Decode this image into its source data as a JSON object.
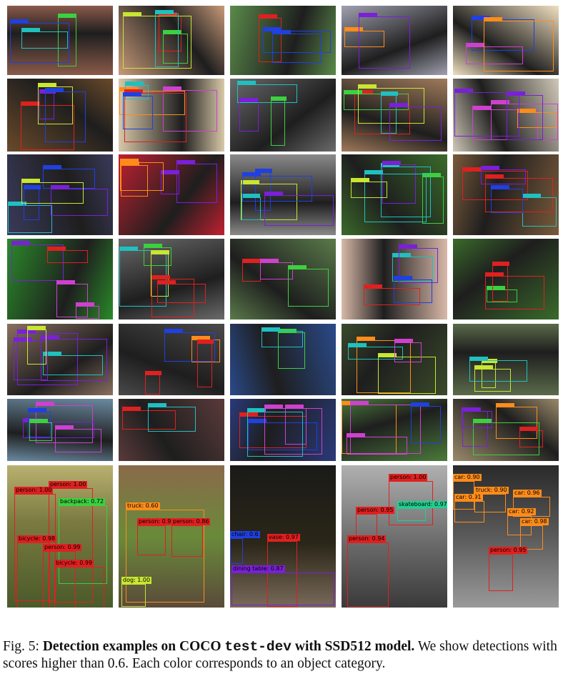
{
  "figure": {
    "caption": {
      "fig_label": "Fig. 5:",
      "bold_part1": "Detection examples on COCO",
      "code": "test-dev",
      "bold_part2": "with SSD512 model.",
      "rest": "We show detections with scores higher than 0.6. Each color corresponds to an object category."
    },
    "large_row": [
      {
        "scene": "forest bikers",
        "detections": [
          {
            "label": "person: 1.00",
            "color": "#e02020"
          },
          {
            "label": "person: 1.00",
            "color": "#e02020"
          },
          {
            "label": "backpack: 0.72",
            "color": "#3cd040"
          },
          {
            "label": "bicycle: 0.98",
            "color": "#e02020"
          },
          {
            "label": "person: 0.99",
            "color": "#e02020"
          },
          {
            "label": "bicycle: 0.99",
            "color": "#e02020"
          }
        ]
      },
      {
        "scene": "truck in countryside",
        "detections": [
          {
            "label": "truck: 0.60",
            "color": "#ff8c1a"
          },
          {
            "label": "person: 0.93",
            "color": "#e02020"
          },
          {
            "label": "person: 0.86",
            "color": "#e02020"
          },
          {
            "label": "dog: 1.00",
            "color": "#c8e632"
          }
        ]
      },
      {
        "scene": "sunflower vase",
        "detections": [
          {
            "label": "vase: 0.97",
            "color": "#e02020"
          },
          {
            "label": "dining table: 0.87",
            "color": "#7a20d8"
          },
          {
            "label": "chair: 0.6",
            "color": "#2040e0"
          }
        ]
      },
      {
        "scene": "skateboard jump",
        "detections": [
          {
            "label": "person: 1.00",
            "color": "#e02020"
          },
          {
            "label": "skateboard: 0.97",
            "color": "#20d090"
          },
          {
            "label": "person: 0.95",
            "color": "#e02020"
          },
          {
            "label": "person: 0.94",
            "color": "#e02020"
          }
        ]
      },
      {
        "scene": "street with cars",
        "detections": [
          {
            "label": "car: 0.90",
            "color": "#ff8c1a"
          },
          {
            "label": "car: 0.91",
            "color": "#ff8c1a"
          },
          {
            "label": "truck: 0.90",
            "color": "#ff8c1a"
          },
          {
            "label": "car: 0.96",
            "color": "#ff8c1a"
          },
          {
            "label": "car: 0.92",
            "color": "#ff8c1a"
          },
          {
            "label": "car: 0.98",
            "color": "#ff8c1a"
          },
          {
            "label": "person: 0.95",
            "color": "#e02020"
          }
        ]
      }
    ]
  }
}
